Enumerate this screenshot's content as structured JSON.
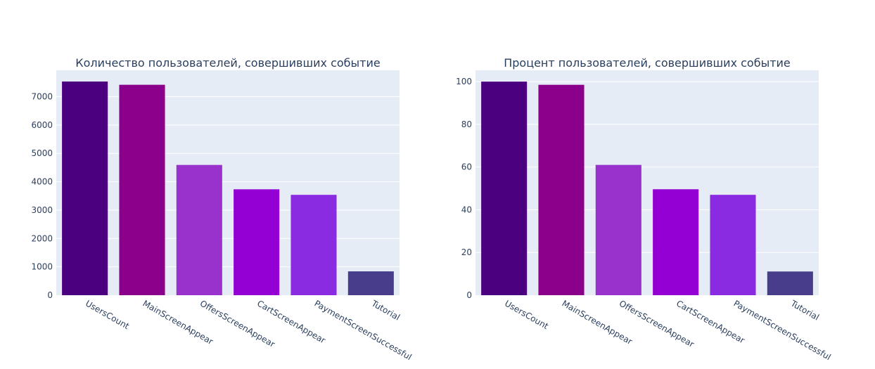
{
  "chart_data": [
    {
      "type": "bar",
      "title": "Количество пользователей, совершивших событие",
      "xlabel": "",
      "ylabel": "",
      "categories": [
        "UsersCount",
        "MainScreenAppear",
        "OffersScreenAppear",
        "CartScreenAppear",
        "PaymentScreenSuccessful",
        "Tutorial"
      ],
      "values": [
        7534,
        7419,
        4593,
        3734,
        3539,
        840
      ],
      "colors": [
        "#4b0080",
        "#8b008b",
        "#9932cc",
        "#9400d3",
        "#8a2be2",
        "#483d8b"
      ],
      "ylim": [
        0,
        7930
      ],
      "yticks": [
        0,
        1000,
        2000,
        3000,
        4000,
        5000,
        6000,
        7000
      ],
      "grid": true,
      "legend": "none"
    },
    {
      "type": "bar",
      "title": "Процент пользователей, совершивших событие",
      "xlabel": "",
      "ylabel": "",
      "categories": [
        "UsersCount",
        "MainScreenAppear",
        "OffersScreenAppear",
        "CartScreenAppear",
        "PaymentScreenSuccessful",
        "Tutorial"
      ],
      "values": [
        100,
        98.5,
        61,
        49.6,
        47,
        11.1
      ],
      "colors": [
        "#4b0080",
        "#8b008b",
        "#9932cc",
        "#9400d3",
        "#8a2be2",
        "#483d8b"
      ],
      "ylim": [
        0,
        105.3
      ],
      "yticks": [
        0,
        20,
        40,
        60,
        80,
        100
      ],
      "grid": true,
      "legend": "none"
    }
  ]
}
